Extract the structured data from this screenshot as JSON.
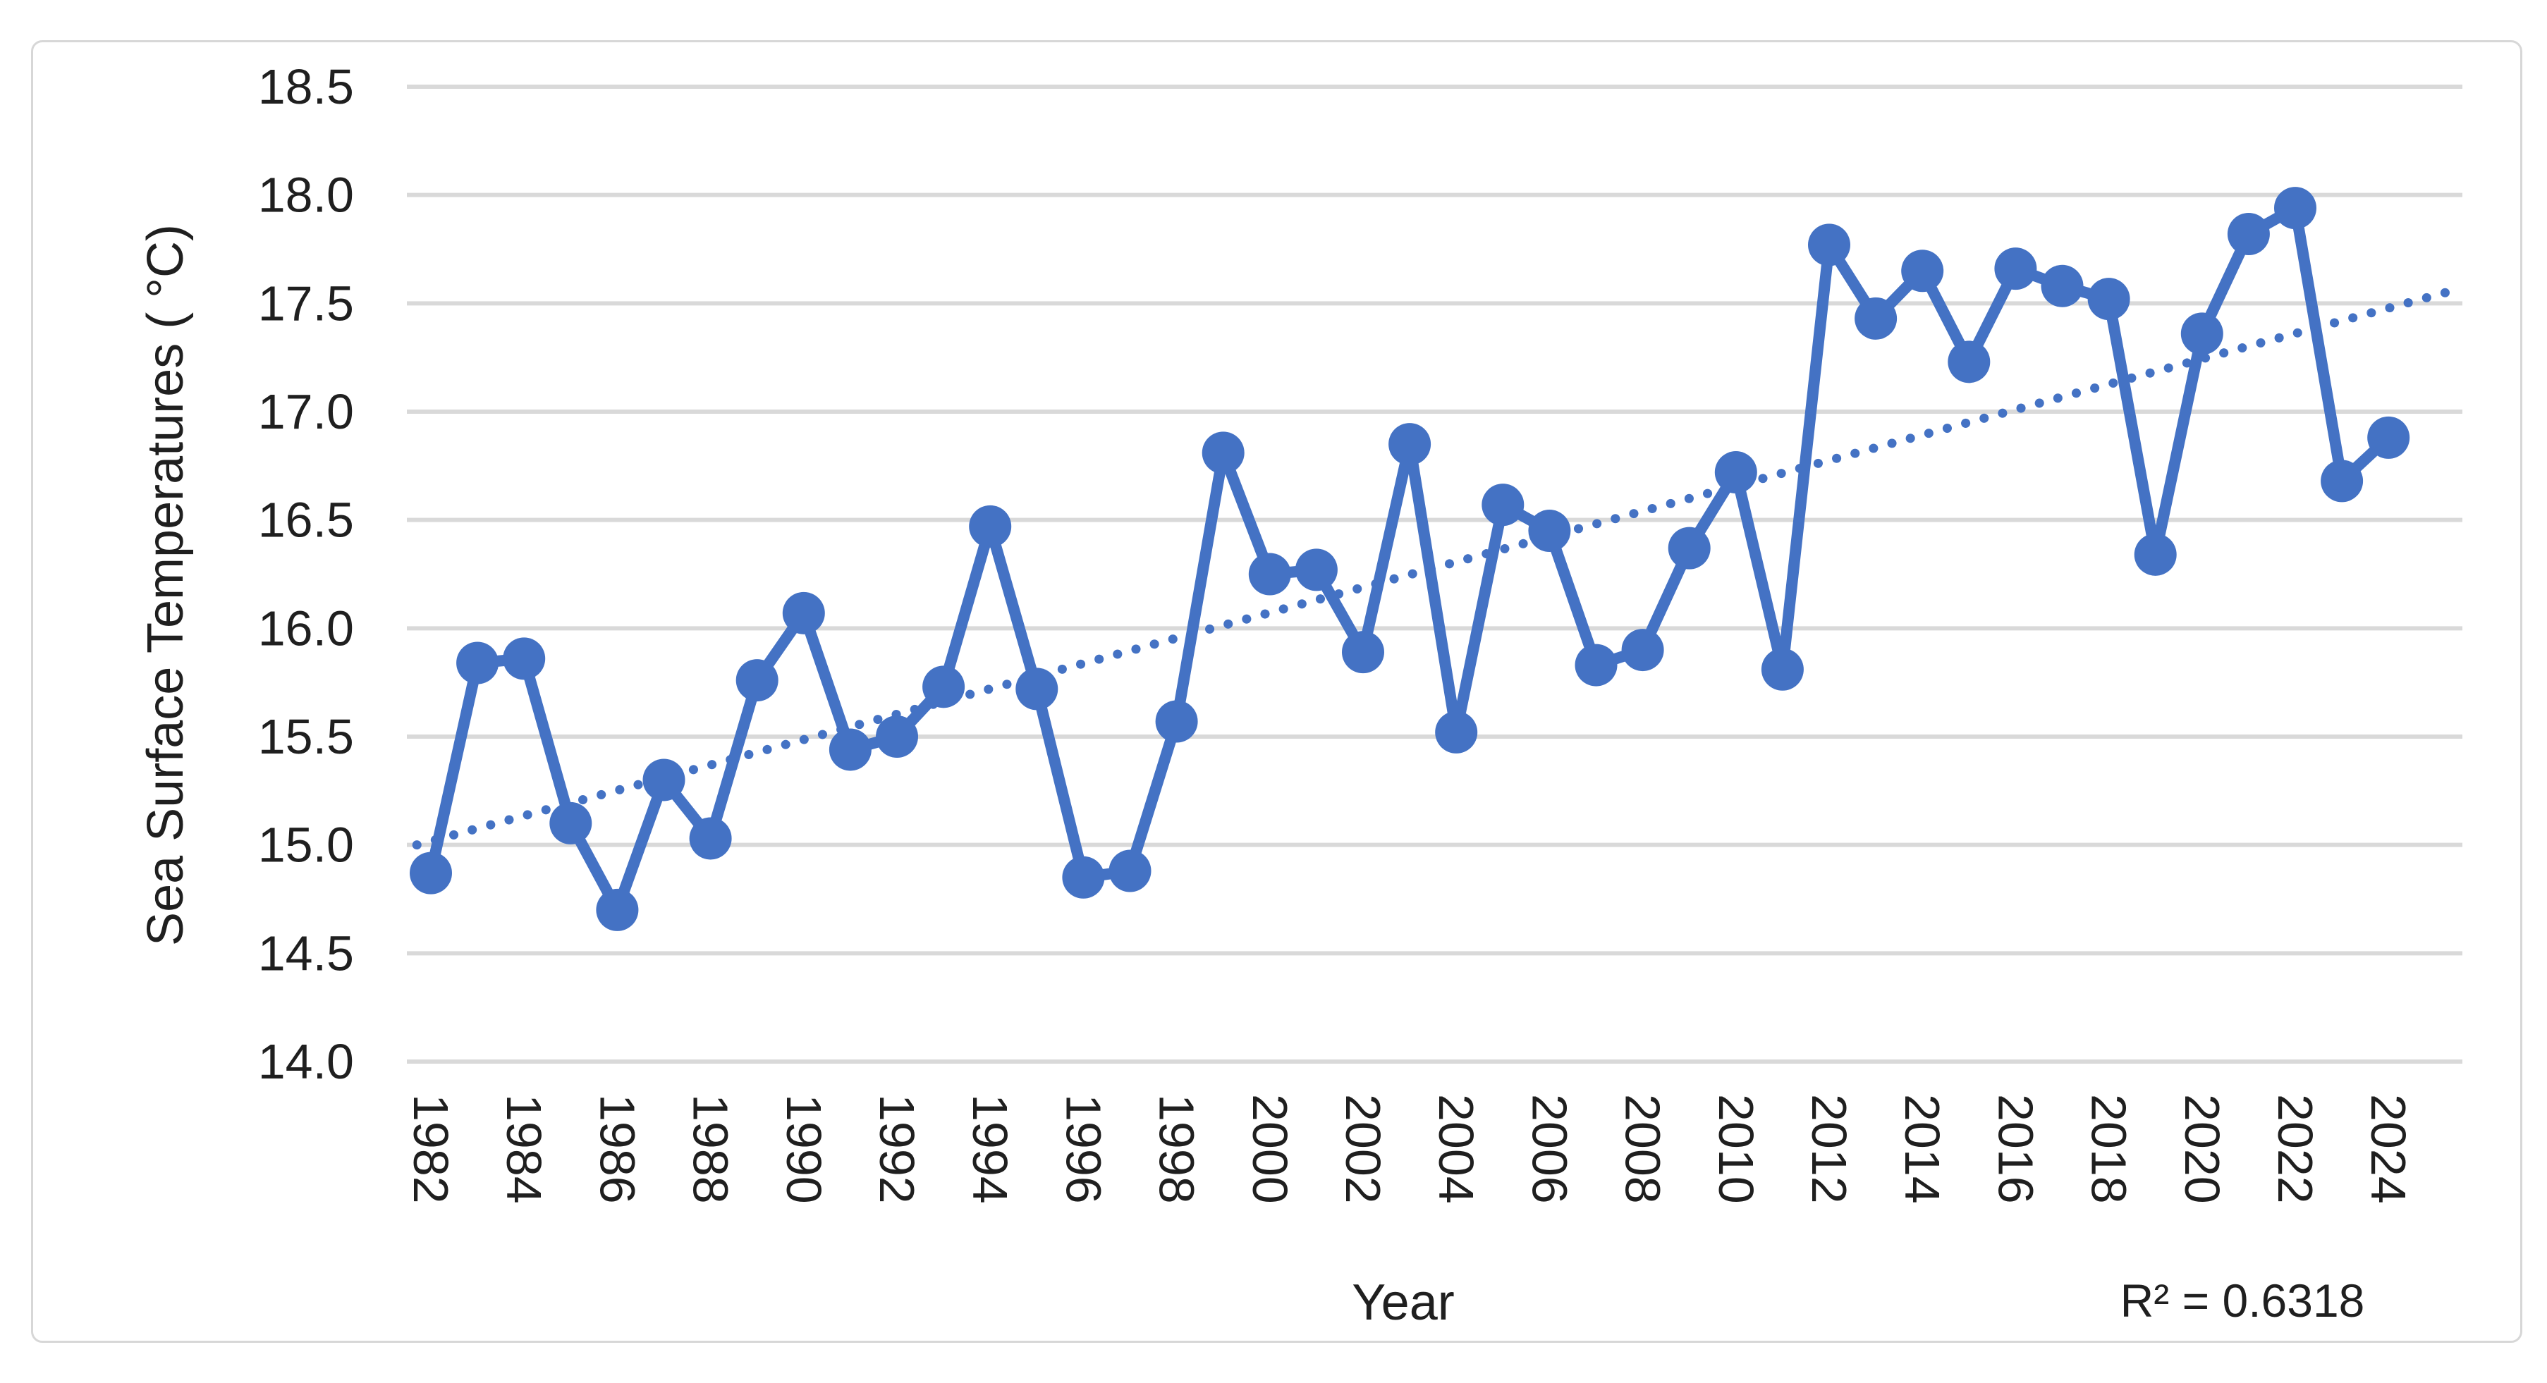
{
  "chart_data": {
    "type": "line",
    "title": "",
    "xlabel": "Year",
    "ylabel": "Sea Surface Temperatures ( °C)",
    "categories": [
      1982,
      1983,
      1984,
      1985,
      1986,
      1987,
      1988,
      1989,
      1990,
      1991,
      1992,
      1993,
      1994,
      1995,
      1996,
      1997,
      1998,
      1999,
      2000,
      2001,
      2002,
      2003,
      2004,
      2005,
      2006,
      2007,
      2008,
      2009,
      2010,
      2011,
      2012,
      2013,
      2014,
      2015,
      2016,
      2017,
      2018,
      2019,
      2020,
      2021,
      2022,
      2023,
      2024
    ],
    "series": [
      {
        "name": "Sea Surface Temperatures",
        "values": [
          14.87,
          15.84,
          15.86,
          15.1,
          14.7,
          15.3,
          15.03,
          15.76,
          16.07,
          15.44,
          15.5,
          15.73,
          16.47,
          15.72,
          14.85,
          14.88,
          15.57,
          16.81,
          16.25,
          16.27,
          15.89,
          16.85,
          15.52,
          16.57,
          16.45,
          15.83,
          15.9,
          16.37,
          16.72,
          15.81,
          17.77,
          17.43,
          17.65,
          17.23,
          17.66,
          17.58,
          17.52,
          16.34,
          17.36,
          17.82,
          17.94,
          16.68,
          16.88
        ]
      }
    ],
    "trendline": {
      "style": "dotted-linear",
      "start_year": 1981.7,
      "start_value": 15.0,
      "end_year": 2025.4,
      "end_value": 17.56,
      "r_squared": 0.6318
    },
    "ylim": [
      14.0,
      18.5
    ],
    "ytick_labels": [
      "14.0",
      "14.5",
      "15.0",
      "15.5",
      "16.0",
      "16.5",
      "17.0",
      "17.5",
      "18.0",
      "18.5"
    ],
    "xtick_labels": [
      "1982",
      "1984",
      "1986",
      "1988",
      "1990",
      "1992",
      "1994",
      "1996",
      "1998",
      "2000",
      "2002",
      "2004",
      "2006",
      "2008",
      "2010",
      "2012",
      "2014",
      "2016",
      "2018",
      "2020",
      "2022",
      "2024"
    ],
    "xtick_rotation_deg": 90,
    "grid": true,
    "legend": "none",
    "colors": {
      "series": "#4472C4",
      "trendline": "#4472C4",
      "gridline": "#d9d9d9",
      "tick_text": "#1f1f1f",
      "frame_border": "#d7d7d7",
      "background": "#ffffff"
    }
  },
  "labels": {
    "x_axis_title": "Year",
    "y_axis_title": "Sea Surface Temperatures ( °C)",
    "r_squared": "R² = 0.6318"
  }
}
